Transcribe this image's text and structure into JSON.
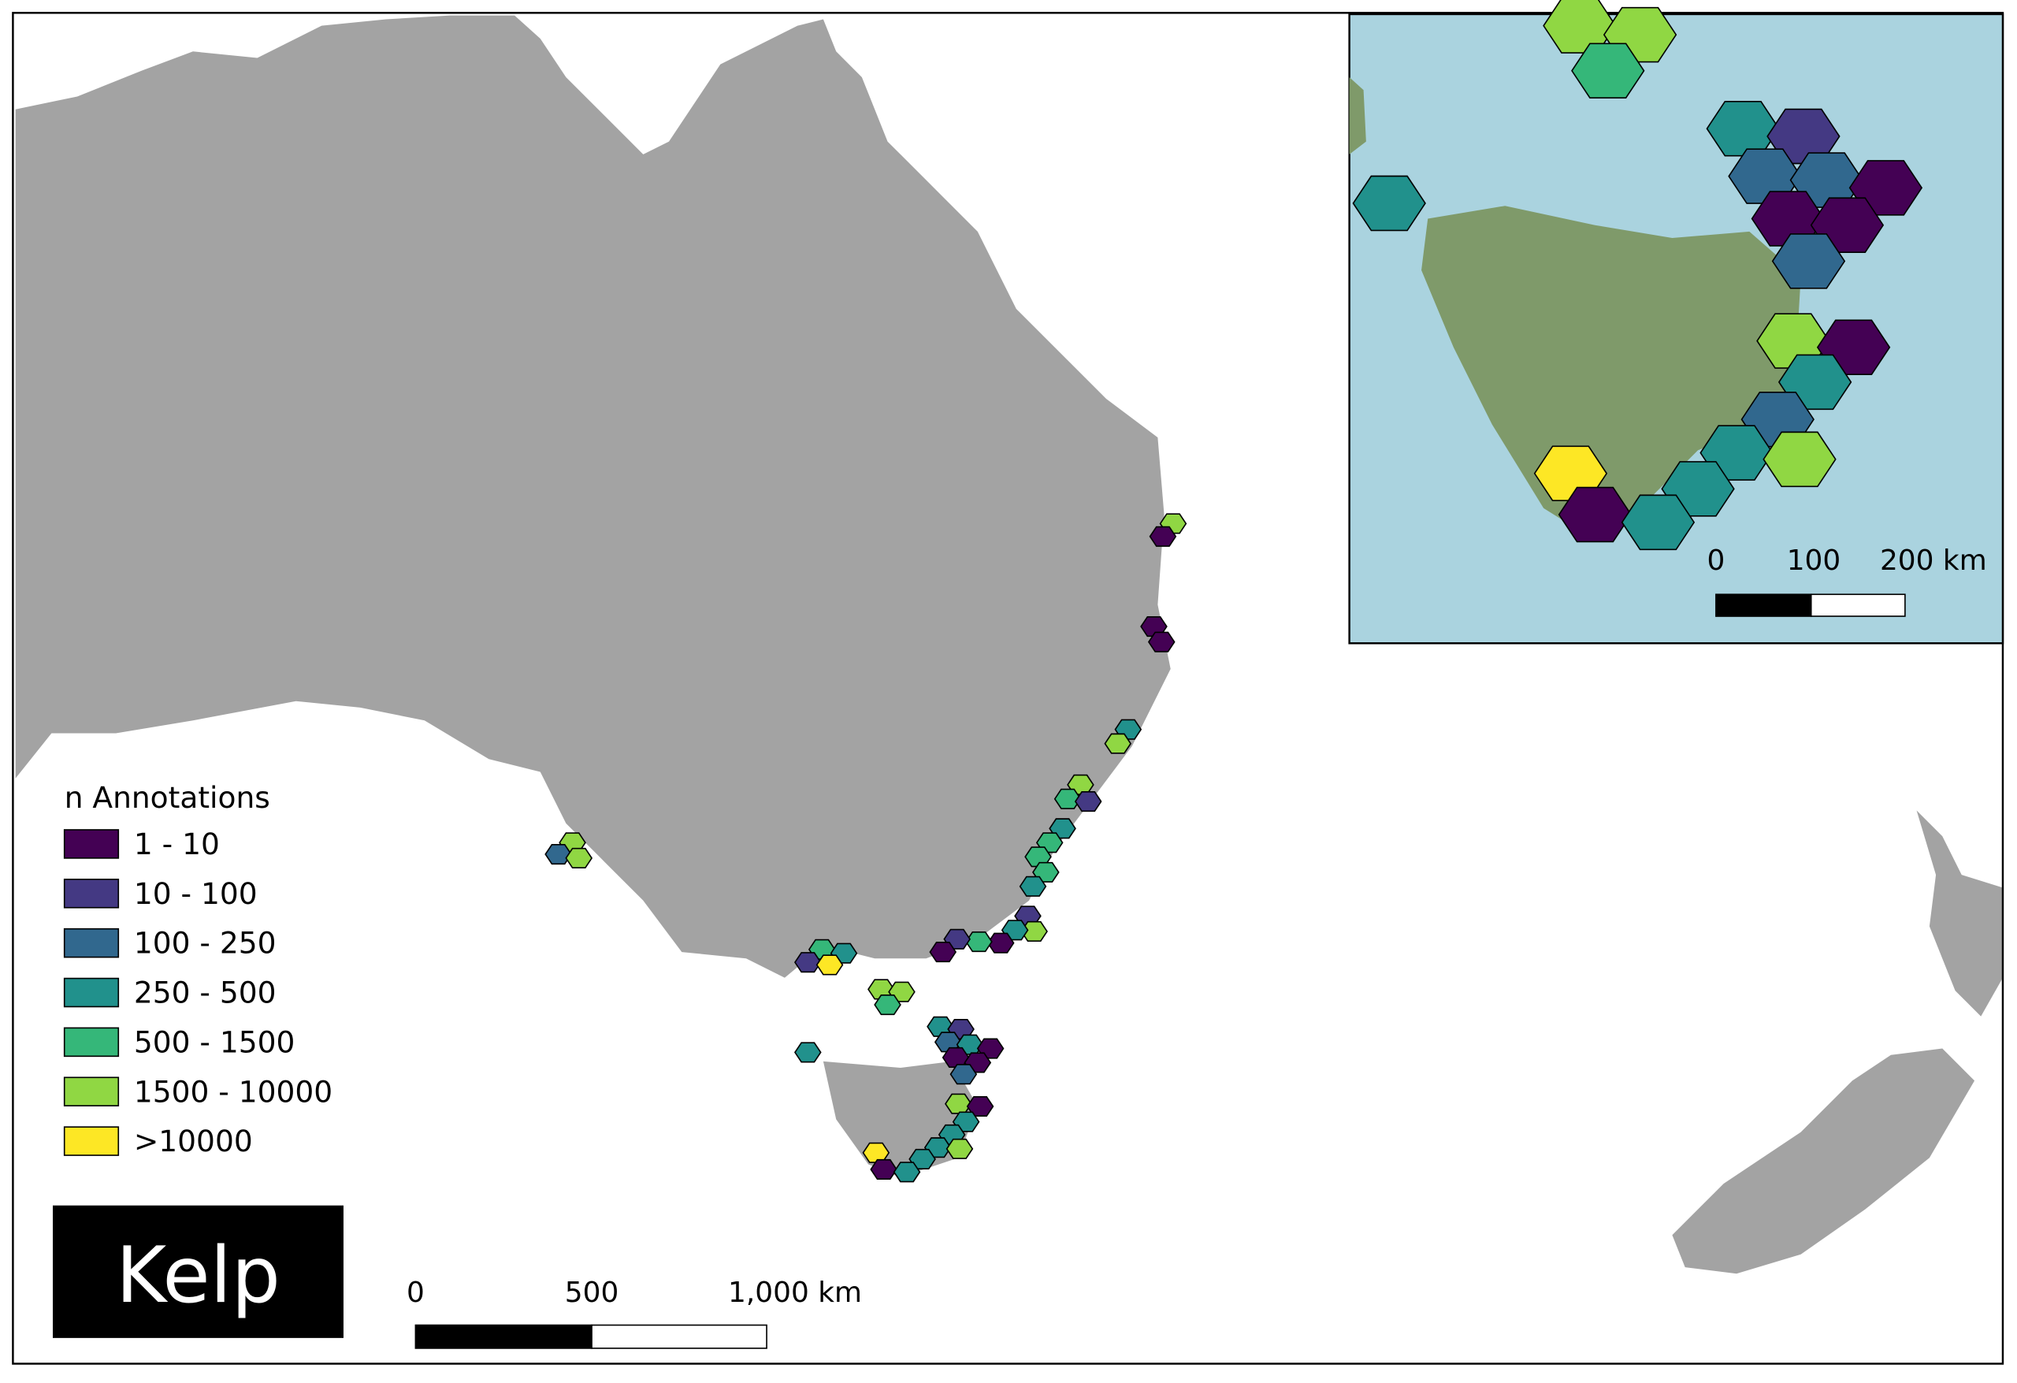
{
  "legend": {
    "title": "n Annotations",
    "items": [
      {
        "label": "1 - 10",
        "color": "#440154"
      },
      {
        "label": "10 - 100",
        "color": "#443983"
      },
      {
        "label": "100 - 250",
        "color": "#31688e"
      },
      {
        "label": "250 - 500",
        "color": "#21918c"
      },
      {
        "label": "500 - 1500",
        "color": "#35b779"
      },
      {
        "label": "1500 - 10000",
        "color": "#90d743"
      },
      {
        "label": ">10000",
        "color": "#fde725"
      }
    ]
  },
  "title": "Kelp",
  "scale_bar": {
    "labels": [
      "0",
      "500",
      "1,000 km"
    ]
  },
  "inset": {
    "scale_bar": {
      "labels": [
        "0",
        "100",
        "200 km"
      ]
    }
  }
}
